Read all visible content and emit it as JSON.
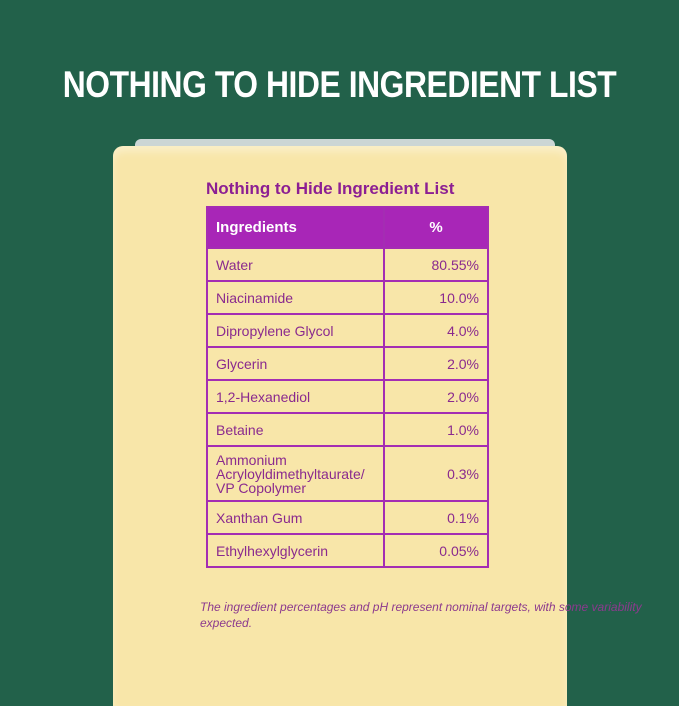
{
  "headline": "NOTHING TO HIDE INGREDIENT LIST",
  "panel": {
    "title": "Nothing to Hide Ingredient List",
    "columns": [
      "Ingredients",
      "%"
    ],
    "rows": [
      {
        "name": "Water",
        "pct": "80.55%"
      },
      {
        "name": "Niacinamide",
        "pct": "10.0%"
      },
      {
        "name": "Dipropylene Glycol",
        "pct": "4.0%"
      },
      {
        "name": "Glycerin",
        "pct": "2.0%"
      },
      {
        "name": "1,2-Hexanediol",
        "pct": "2.0%"
      },
      {
        "name": "Betaine",
        "pct": "1.0%"
      },
      {
        "name": "Ammonium Acryloyldimethyltaurate/ VP Copolymer",
        "pct": "0.3%"
      },
      {
        "name": "Xanthan Gum",
        "pct": "0.1%"
      },
      {
        "name": "Ethylhexylglycerin",
        "pct": "0.05%"
      }
    ],
    "note": "The ingredient percentages and pH represent nominal targets, with some variability expected."
  },
  "colors": {
    "background": "#22614a",
    "box": "#f8e6a9",
    "accent": "#a826b7"
  }
}
